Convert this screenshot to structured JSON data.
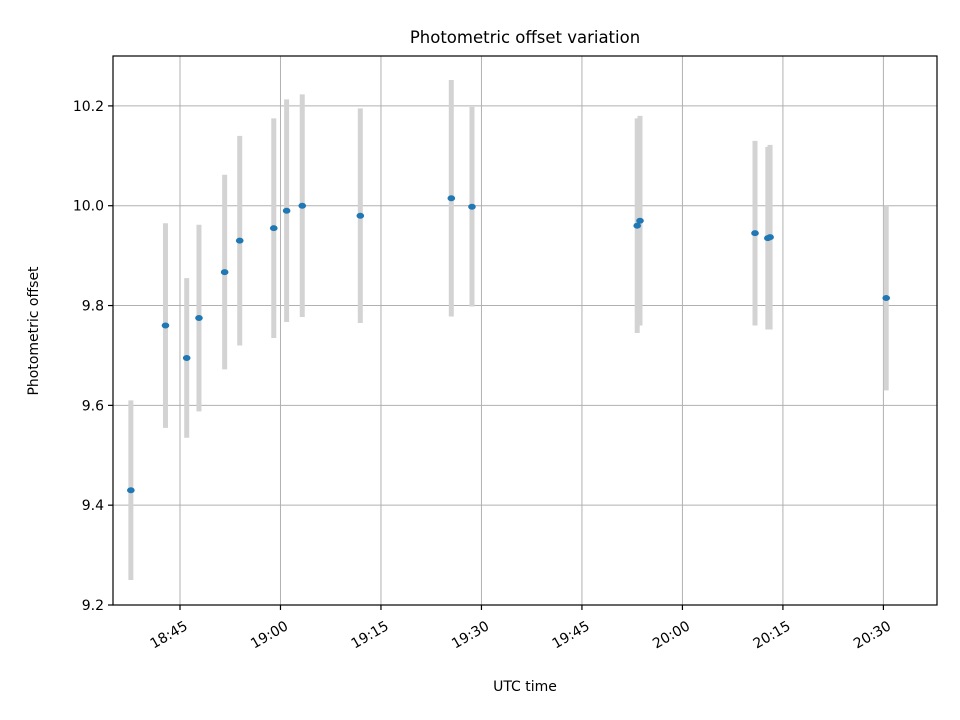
{
  "chart_data": {
    "type": "scatter",
    "title": "Photometric offset variation",
    "xlabel": "UTC time",
    "ylabel": "Photometric offset",
    "xlim": [
      "18:35",
      "20:38"
    ],
    "ylim": [
      9.2,
      10.3
    ],
    "grid": true,
    "error_bar_color": "#d3d3d3",
    "point_color": "#1f77b4",
    "x_ticks": [
      "18:45",
      "19:00",
      "19:15",
      "19:30",
      "19:45",
      "20:00",
      "20:15",
      "20:30"
    ],
    "y_ticks": [
      "9.2",
      "9.4",
      "9.6",
      "9.8",
      "10.0",
      "10.2"
    ],
    "points": [
      {
        "x": "18:37:40",
        "y": 9.43,
        "yerr": 0.18
      },
      {
        "x": "18:42:50",
        "y": 9.76,
        "yerr": 0.205
      },
      {
        "x": "18:46:00",
        "y": 9.695,
        "yerr": 0.16
      },
      {
        "x": "18:47:50",
        "y": 9.775,
        "yerr": 0.187
      },
      {
        "x": "18:51:40",
        "y": 9.867,
        "yerr": 0.195
      },
      {
        "x": "18:53:55",
        "y": 9.93,
        "yerr": 0.21
      },
      {
        "x": "18:59:00",
        "y": 9.955,
        "yerr": 0.22
      },
      {
        "x": "19:00:55",
        "y": 9.99,
        "yerr": 0.223
      },
      {
        "x": "19:03:15",
        "y": 10.0,
        "yerr": 0.223
      },
      {
        "x": "19:11:55",
        "y": 9.98,
        "yerr": 0.215
      },
      {
        "x": "19:25:30",
        "y": 10.015,
        "yerr": 0.237
      },
      {
        "x": "19:28:35",
        "y": 9.998,
        "yerr": 0.2
      },
      {
        "x": "19:53:15",
        "y": 9.96,
        "yerr": 0.215
      },
      {
        "x": "19:53:40",
        "y": 9.97,
        "yerr": 0.21
      },
      {
        "x": "20:10:50",
        "y": 9.945,
        "yerr": 0.185
      },
      {
        "x": "20:12:45",
        "y": 9.935,
        "yerr": 0.183
      },
      {
        "x": "20:13:05",
        "y": 9.937,
        "yerr": 0.185
      },
      {
        "x": "20:30:25",
        "y": 9.815,
        "yerr": 0.185
      }
    ]
  }
}
